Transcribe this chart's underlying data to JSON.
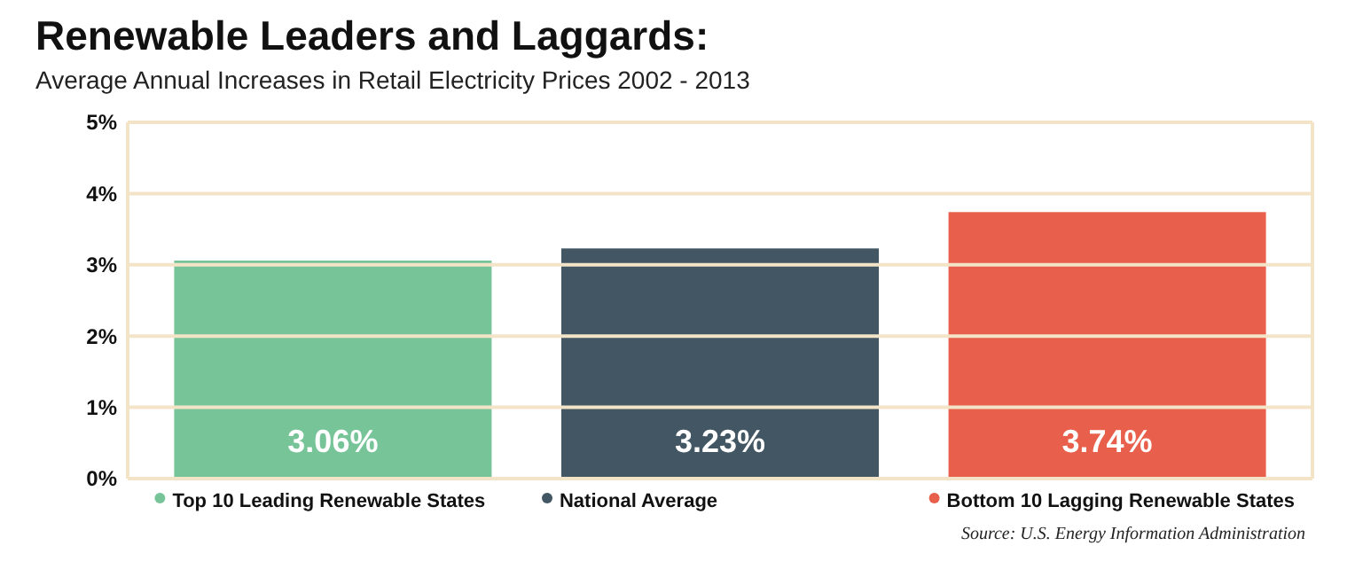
{
  "chart_data": {
    "type": "bar",
    "title": "Renewable Leaders and Laggards:",
    "subtitle": "Average Annual Increases in Retail Electricity Prices 2002 - 2013",
    "categories": [
      "Top 10 Leading Renewable States",
      "National Average",
      "Bottom 10 Lagging Renewable States"
    ],
    "values": [
      3.06,
      3.23,
      3.74
    ],
    "colors": [
      "#78c499",
      "#425664",
      "#e8604c"
    ],
    "value_labels": [
      "3.06%",
      "3.23%",
      "3.74%"
    ],
    "ylim": [
      0,
      5
    ],
    "yticks": [
      {
        "value": 0,
        "label": "0%"
      },
      {
        "value": 1,
        "label": "1%"
      },
      {
        "value": 2,
        "label": "2%"
      },
      {
        "value": 3,
        "label": "3%"
      },
      {
        "value": 4,
        "label": "4%"
      },
      {
        "value": 5,
        "label": "5%"
      }
    ],
    "grid": "y",
    "annotations": [
      "Source: U.S. Energy Information Administration"
    ]
  }
}
